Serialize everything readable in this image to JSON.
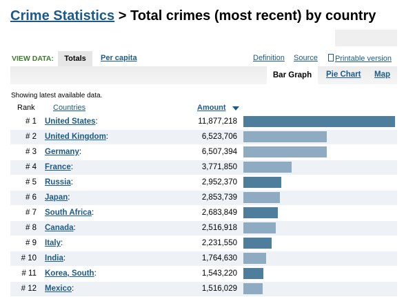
{
  "header": {
    "breadcrumb_link": "Crime Statistics",
    "separator": " > ",
    "title": "Total crimes (most recent) by country"
  },
  "viewbar": {
    "label": "VIEW DATA:",
    "tab_totals": "Totals",
    "tab_per_capita": "Per capita",
    "link_definition": "Definition",
    "link_source": "Source",
    "link_printable": "Printable version"
  },
  "graph_tabs": {
    "bar_graph": "Bar Graph",
    "pie_chart": "Pie Chart",
    "map": "Map"
  },
  "showing_text": "Showing latest available data.",
  "columns": {
    "rank": "Rank",
    "countries": "Countries",
    "amount": "Amount"
  },
  "colors": {
    "link": "#1a5a8a",
    "bar_dark": "#4f7d9c",
    "bar_light": "#8eabc2",
    "view_label": "#3c7a2c"
  },
  "rows": [
    {
      "rank": "# 1",
      "country": "United States",
      "amount": "11,877,218",
      "value": 11877218
    },
    {
      "rank": "# 2",
      "country": "United Kingdom",
      "amount": "6,523,706",
      "value": 6523706
    },
    {
      "rank": "# 3",
      "country": "Germany",
      "amount": "6,507,394",
      "value": 6507394
    },
    {
      "rank": "# 4",
      "country": "France",
      "amount": "3,771,850",
      "value": 3771850
    },
    {
      "rank": "# 5",
      "country": "Russia",
      "amount": "2,952,370",
      "value": 2952370
    },
    {
      "rank": "# 6",
      "country": "Japan",
      "amount": "2,853,739",
      "value": 2853739
    },
    {
      "rank": "# 7",
      "country": "South Africa",
      "amount": "2,683,849",
      "value": 2683849
    },
    {
      "rank": "# 8",
      "country": "Canada",
      "amount": "2,516,918",
      "value": 2516918
    },
    {
      "rank": "# 9",
      "country": "Italy",
      "amount": "2,231,550",
      "value": 2231550
    },
    {
      "rank": "# 10",
      "country": "India",
      "amount": "1,764,630",
      "value": 1764630
    },
    {
      "rank": "# 11",
      "country": "Korea, South",
      "amount": "1,543,220",
      "value": 1543220
    },
    {
      "rank": "# 12",
      "country": "Mexico",
      "amount": "1,516,029",
      "value": 1516029
    }
  ]
}
